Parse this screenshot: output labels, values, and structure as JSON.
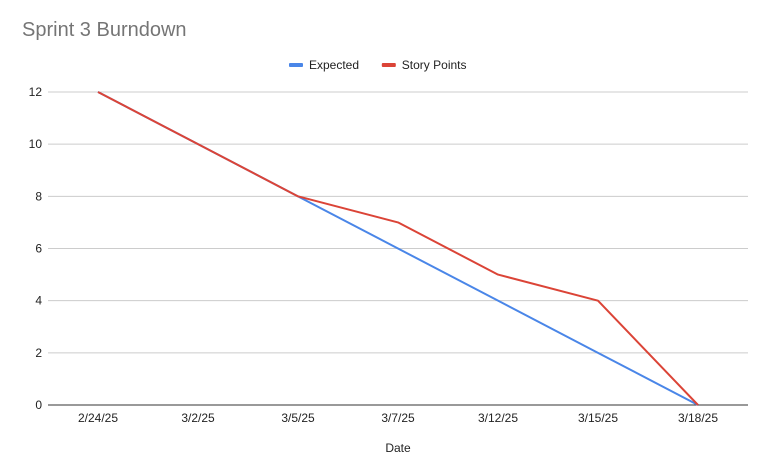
{
  "chart_data": {
    "type": "line",
    "title": "Sprint 3 Burndown",
    "xlabel": "Date",
    "ylabel": "",
    "categories": [
      "2/24/25",
      "3/2/25",
      "3/5/25",
      "3/7/25",
      "3/12/25",
      "3/15/25",
      "3/18/25"
    ],
    "series": [
      {
        "name": "Expected",
        "color": "#4a86e8",
        "values": [
          12,
          10,
          8,
          6,
          4,
          2,
          0
        ]
      },
      {
        "name": "Story Points",
        "color": "#db4437",
        "values": [
          12,
          10,
          8,
          7,
          5,
          4,
          0
        ]
      }
    ],
    "ylim": [
      0,
      12
    ],
    "yticks": [
      0,
      2,
      4,
      6,
      8,
      10,
      12
    ],
    "grid": true,
    "legend": "top-center"
  }
}
